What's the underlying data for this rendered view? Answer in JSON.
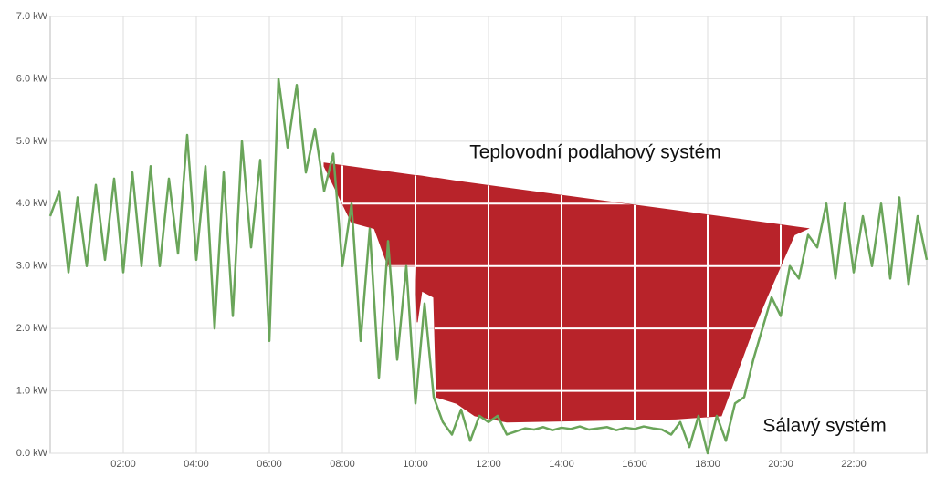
{
  "chart_data": {
    "type": "line",
    "xlim": [
      0,
      24
    ],
    "ylim": [
      0,
      7
    ],
    "xticks": [
      {
        "value": 2,
        "label": "02:00"
      },
      {
        "value": 4,
        "label": "04:00"
      },
      {
        "value": 6,
        "label": "06:00"
      },
      {
        "value": 8,
        "label": "08:00"
      },
      {
        "value": 10,
        "label": "10:00"
      },
      {
        "value": 12,
        "label": "12:00"
      },
      {
        "value": 14,
        "label": "14:00"
      },
      {
        "value": 16,
        "label": "16:00"
      },
      {
        "value": 18,
        "label": "18:00"
      },
      {
        "value": 20,
        "label": "20:00"
      },
      {
        "value": 22,
        "label": "22:00"
      }
    ],
    "yticks": [
      {
        "value": 0,
        "label": "0.0 kW"
      },
      {
        "value": 1,
        "label": "1.0 kW"
      },
      {
        "value": 2,
        "label": "2.0 kW"
      },
      {
        "value": 3,
        "label": "3.0 kW"
      },
      {
        "value": 4,
        "label": "4.0 kW"
      },
      {
        "value": 5,
        "label": "5.0 kW"
      },
      {
        "value": 6,
        "label": "6.0 kW"
      },
      {
        "value": 7,
        "label": "7.0 kW"
      }
    ],
    "grid": true,
    "series": [
      {
        "name": "Sálavý systém",
        "type": "line",
        "color": "#6aa55a",
        "x": [
          0,
          0.25,
          0.5,
          0.75,
          1,
          1.25,
          1.5,
          1.75,
          2,
          2.25,
          2.5,
          2.75,
          3,
          3.25,
          3.5,
          3.75,
          4,
          4.25,
          4.5,
          4.75,
          5,
          5.25,
          5.5,
          5.75,
          6,
          6.25,
          6.5,
          6.75,
          7,
          7.25,
          7.5,
          7.75,
          8,
          8.25,
          8.5,
          8.75,
          9,
          9.25,
          9.5,
          9.75,
          10,
          10.25,
          10.5,
          10.75,
          11,
          11.25,
          11.5,
          11.75,
          12,
          12.25,
          12.5,
          12.75,
          13,
          13.25,
          13.5,
          13.75,
          14,
          14.25,
          14.5,
          14.75,
          15,
          15.25,
          15.5,
          15.75,
          16,
          16.25,
          16.5,
          16.75,
          17,
          17.25,
          17.5,
          17.75,
          18,
          18.25,
          18.5,
          18.75,
          19,
          19.25,
          19.5,
          19.75,
          20,
          20.25,
          20.5,
          20.75,
          21,
          21.25,
          21.5,
          21.75,
          22,
          22.25,
          22.5,
          22.75,
          23,
          23.25,
          23.5,
          23.75,
          24
        ],
        "values": [
          3.8,
          4.2,
          2.9,
          4.1,
          3.0,
          4.3,
          3.1,
          4.4,
          2.9,
          4.5,
          3.0,
          4.6,
          3.0,
          4.4,
          3.2,
          5.1,
          3.1,
          4.6,
          2.0,
          4.5,
          2.2,
          5.0,
          3.3,
          4.7,
          1.8,
          6.0,
          4.9,
          5.9,
          4.5,
          5.2,
          4.2,
          4.8,
          3.0,
          4.0,
          1.8,
          3.6,
          1.2,
          3.4,
          1.5,
          3.0,
          0.8,
          2.4,
          0.9,
          0.5,
          0.3,
          0.7,
          0.2,
          0.6,
          0.5,
          0.6,
          0.3,
          0.35,
          0.4,
          0.38,
          0.42,
          0.37,
          0.41,
          0.39,
          0.43,
          0.38,
          0.4,
          0.42,
          0.37,
          0.41,
          0.39,
          0.43,
          0.4,
          0.38,
          0.3,
          0.5,
          0.1,
          0.6,
          0.0,
          0.6,
          0.2,
          0.8,
          0.9,
          1.5,
          2.0,
          2.5,
          2.2,
          3.0,
          2.8,
          3.5,
          3.3,
          4.0,
          2.8,
          4.0,
          2.9,
          3.8,
          3.0,
          4.0,
          2.8,
          4.1,
          2.7,
          3.8,
          3.1
        ]
      },
      {
        "name": "Teplovodní podlahový systém",
        "type": "area",
        "color": "#b8232a",
        "x": [
          7.5,
          8,
          8.25,
          8.875,
          9.25,
          10,
          10.05,
          10.175,
          10.5,
          10.575,
          11.125,
          11.625,
          12.5,
          17.125,
          18.375,
          18.625,
          19.125,
          19.625,
          20,
          20.375,
          20.75
        ],
        "values": [
          4.65,
          4.61,
          4.59,
          4.54,
          4.51,
          4.45,
          4.45,
          4.44,
          4.41,
          4.41,
          4.36,
          4.32,
          4.25,
          3.89,
          3.79,
          3.77,
          3.73,
          3.69,
          3.66,
          3.63,
          3.6
        ],
        "baseline": [
          4.6,
          4.0,
          3.7,
          3.6,
          3.0,
          3.0,
          2.1,
          2.6,
          2.5,
          0.9,
          0.8,
          0.6,
          0.5,
          0.55,
          0.6,
          1.0,
          1.8,
          2.5,
          3.0,
          3.5,
          3.6
        ]
      }
    ]
  }
}
